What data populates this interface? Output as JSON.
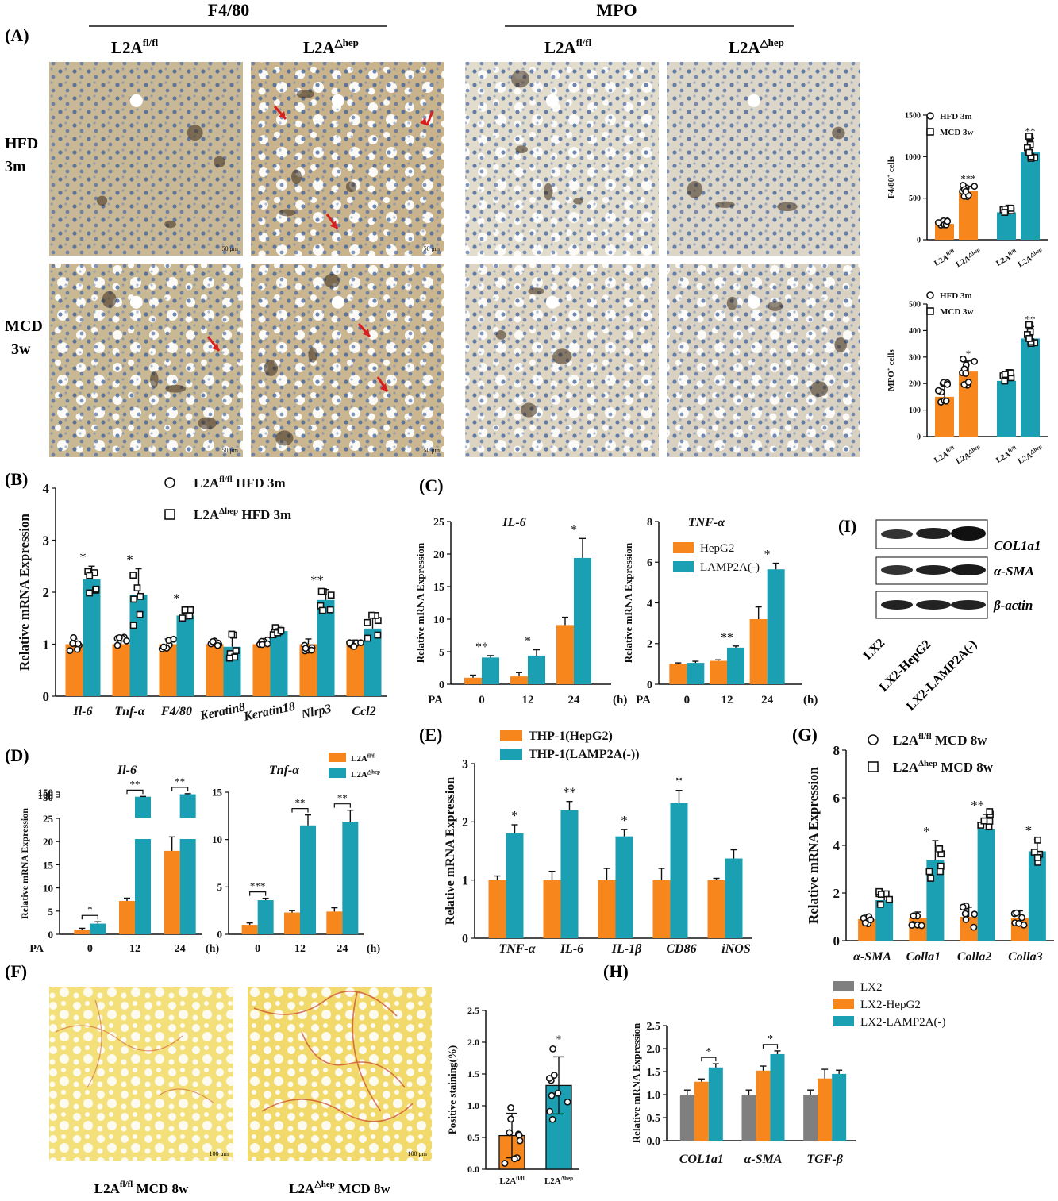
{
  "colors": {
    "orange": "#f7861c",
    "teal": "#1a9fb3",
    "gray": "#7f7f7f",
    "arrow": "#d81e1e"
  },
  "panel_letters": {
    "A": "(A)",
    "B": "(B)",
    "C": "(C)",
    "D": "(D)",
    "E": "(E)",
    "F": "(F)",
    "G": "(G)",
    "H": "(H)",
    "I": "(I)"
  },
  "panelA": {
    "f480_header": "F4/80",
    "mpo_header": "MPO",
    "col_fl_base": "L2A",
    "col_fl_sup": "fl/fl",
    "col_hep_base": "L2A",
    "col_hep_sup": "△hep",
    "row1_a": "HFD",
    "row1_b": "3m",
    "row2_a": "MCD",
    "row2_b": "3w",
    "scale_50": "50 μm",
    "images": [
      {
        "stain": "F4/80",
        "group": "L2A fl/fl",
        "diet": "HFD 3m"
      },
      {
        "stain": "F4/80",
        "group": "L2A hep",
        "diet": "HFD 3m"
      },
      {
        "stain": "MPO",
        "group": "L2A fl/fl",
        "diet": "HFD 3m"
      },
      {
        "stain": "MPO",
        "group": "L2A hep",
        "diet": "HFD 3m"
      },
      {
        "stain": "F4/80",
        "group": "L2A fl/fl",
        "diet": "MCD 3w"
      },
      {
        "stain": "F4/80",
        "group": "L2A hep",
        "diet": "MCD 3w"
      },
      {
        "stain": "MPO",
        "group": "L2A fl/fl",
        "diet": "MCD 3w"
      },
      {
        "stain": "MPO",
        "group": "L2A hep",
        "diet": "MCD 3w"
      }
    ]
  },
  "panelF": {
    "label1_base": "L2A",
    "label1_sup": "fl/fl",
    "label1_tail": " MCD 8w",
    "label2_base": "L2A",
    "label2_sup": "△hep",
    "label2_tail": " MCD 8w",
    "scale_100": "100 μm"
  },
  "panelI": {
    "bands": [
      "COL1a1",
      "α-SMA",
      "β-actin"
    ],
    "lanes": [
      "LX2",
      "LX2-HepG2",
      "LX2-LAMP2A(-)"
    ]
  },
  "chart_data": [
    {
      "id": "A1",
      "type": "bar",
      "ylabel_base": "F4/80",
      "ylabel_sup": "+",
      "ylabel_tail": " cells",
      "ylim": [
        0,
        1500
      ],
      "yticks": [
        "0",
        "500",
        "1000",
        "1500"
      ],
      "legend": [
        {
          "marker": "circle",
          "label": "HFD 3m"
        },
        {
          "marker": "square",
          "label": "MCD 3w"
        }
      ],
      "xticks": [
        {
          "base": "L2A",
          "sup": "fl/fl"
        },
        {
          "base": "L2A",
          "sup": "△hep"
        },
        {
          "base": "L2A",
          "sup": "fl/fl"
        },
        {
          "base": "L2A",
          "sup": "△hep"
        }
      ],
      "bars": [
        {
          "value": 190,
          "err": 30,
          "color": "orange",
          "marker": "circle",
          "sig": ""
        },
        {
          "value": 590,
          "err": 55,
          "color": "orange",
          "marker": "circle",
          "sig": "***"
        },
        {
          "value": 330,
          "err": 40,
          "color": "teal",
          "marker": "square",
          "sig": ""
        },
        {
          "value": 1050,
          "err": 170,
          "color": "teal",
          "marker": "square",
          "sig": "**"
        }
      ]
    },
    {
      "id": "A2",
      "type": "bar",
      "ylabel_base": "MPO",
      "ylabel_sup": "+",
      "ylabel_tail": " cells",
      "ylim": [
        0,
        500
      ],
      "yticks": [
        "0",
        "100",
        "200",
        "300",
        "400",
        "500"
      ],
      "legend": [
        {
          "marker": "circle",
          "label": "HFD 3m"
        },
        {
          "marker": "square",
          "label": "MCD 3w"
        }
      ],
      "xticks": [
        {
          "base": "L2A",
          "sup": "fl/fl"
        },
        {
          "base": "L2A",
          "sup": "△hep"
        },
        {
          "base": "L2A",
          "sup": "fl/fl"
        },
        {
          "base": "L2A",
          "sup": "△hep"
        }
      ],
      "bars": [
        {
          "value": 150,
          "err": 45,
          "color": "orange",
          "marker": "circle",
          "sig": ""
        },
        {
          "value": 245,
          "err": 40,
          "color": "orange",
          "marker": "circle",
          "sig": "*"
        },
        {
          "value": 210,
          "err": 25,
          "color": "teal",
          "marker": "square",
          "sig": ""
        },
        {
          "value": 370,
          "err": 45,
          "color": "teal",
          "marker": "square",
          "sig": "**"
        }
      ]
    },
    {
      "id": "B",
      "type": "bar",
      "ylabel": "Relative mRNA Expression",
      "ylim": [
        0,
        4
      ],
      "yticks": [
        "0",
        "1",
        "2",
        "3",
        "4"
      ],
      "categories": [
        "Il-6",
        "Tnf-α",
        "F4/80",
        "Keratin8",
        "Keratin18",
        "Nlrp3",
        "Ccl2"
      ],
      "legend": [
        {
          "marker": "circle",
          "base": "L2A",
          "sup": "fl/fl",
          "tail": " HFD 3m"
        },
        {
          "marker": "square",
          "base": "L2A",
          "sup": "Δhep",
          "tail": " HFD 3m"
        }
      ],
      "series": [
        {
          "values": [
            1.0,
            1.0,
            1.0,
            1.0,
            1.0,
            1.0,
            1.0
          ],
          "err": [
            0.1,
            0.12,
            0.1,
            0.05,
            0.08,
            0.1,
            0.08
          ],
          "color": "orange"
        },
        {
          "values": [
            2.25,
            1.95,
            1.55,
            0.95,
            1.25,
            1.85,
            1.3
          ],
          "err": [
            0.25,
            0.5,
            0.15,
            0.2,
            0.1,
            0.2,
            0.2
          ],
          "color": "teal"
        }
      ],
      "sig": [
        "*",
        "*",
        "*",
        "",
        "",
        "**",
        ""
      ]
    },
    {
      "id": "C1",
      "type": "bar",
      "title": "IL-6",
      "ylabel": "Relative mRNA Expression",
      "ylim": [
        0,
        25
      ],
      "yticks": [
        "0",
        "5",
        "10",
        "15",
        "20",
        "25"
      ],
      "xlabel_prefix": "PA",
      "xunit": "(h)",
      "categories": [
        "0",
        "12",
        "24"
      ],
      "series": [
        {
          "values": [
            1.0,
            1.2,
            9.1
          ],
          "err": [
            0.4,
            0.6,
            1.2
          ],
          "color": "orange"
        },
        {
          "values": [
            4.1,
            4.4,
            19.4
          ],
          "err": [
            0.3,
            0.9,
            3.0
          ],
          "color": "teal"
        }
      ],
      "sig": [
        "**",
        "*",
        "*"
      ]
    },
    {
      "id": "C2",
      "type": "bar",
      "title": "TNF-α",
      "ylabel": "Relative mRNA Expression",
      "ylim": [
        0,
        8
      ],
      "yticks": [
        "0",
        "2",
        "4",
        "6",
        "8"
      ],
      "xlabel_prefix": "PA",
      "xunit": "(h)",
      "categories": [
        "0",
        "12",
        "24"
      ],
      "legend": [
        {
          "color": "orange",
          "label": "HepG2"
        },
        {
          "color": "teal",
          "label": "LAMP2A(-)"
        }
      ],
      "series": [
        {
          "values": [
            1.0,
            1.15,
            3.2
          ],
          "err": [
            0.05,
            0.05,
            0.6
          ],
          "color": "orange"
        },
        {
          "values": [
            1.05,
            1.8,
            5.65
          ],
          "err": [
            0.08,
            0.08,
            0.3
          ],
          "color": "teal"
        }
      ],
      "sig": [
        "",
        "**",
        "*"
      ]
    },
    {
      "id": "D1",
      "type": "bar",
      "title": "Il-6",
      "ylabel": "Relative mRNA Expression",
      "break": true,
      "yticks_low": [
        "0",
        "5",
        "10",
        "15",
        "20",
        "25"
      ],
      "yticks_high": [
        "50",
        "100",
        "150"
      ],
      "xlabel_prefix": "PA",
      "xunit": "(h)",
      "categories": [
        "0",
        "12",
        "24"
      ],
      "series": [
        {
          "values": [
            1.0,
            7.2,
            18.0
          ],
          "err": [
            0.3,
            0.6,
            3.0
          ],
          "color": "orange"
        },
        {
          "values": [
            2.3,
            55,
            107
          ],
          "err": [
            0.4,
            6,
            12
          ],
          "color": "teal"
        }
      ],
      "sig": [
        "*",
        "**",
        "**"
      ]
    },
    {
      "id": "D2",
      "type": "bar",
      "title": "Tnf-α",
      "ylim": [
        0,
        15
      ],
      "yticks": [
        "0",
        "5",
        "10",
        "15"
      ],
      "xlabel_prefix": "",
      "xunit": "(h)",
      "categories": [
        "0",
        "12",
        "24"
      ],
      "legend": [
        {
          "color": "orange",
          "base": "L2A",
          "sup": "fl/fl"
        },
        {
          "color": "teal",
          "base": "L2A",
          "sup": "△hep"
        }
      ],
      "series": [
        {
          "values": [
            1.0,
            2.3,
            2.4
          ],
          "err": [
            0.2,
            0.2,
            0.4
          ],
          "color": "orange"
        },
        {
          "values": [
            3.6,
            11.5,
            11.9
          ],
          "err": [
            0.2,
            1.1,
            1.2
          ],
          "color": "teal"
        }
      ],
      "sig": [
        "***",
        "**",
        "**"
      ]
    },
    {
      "id": "E",
      "type": "bar",
      "ylabel": "Relative mRNA Expression",
      "ylim": [
        0,
        3
      ],
      "yticks": [
        "0",
        "1",
        "2",
        "3"
      ],
      "categories": [
        "TNF-α",
        "IL-6",
        "IL-1β",
        "CD86",
        "iNOS"
      ],
      "legend": [
        {
          "color": "orange",
          "label": "THP-1(HepG2)"
        },
        {
          "color": "teal",
          "label": "THP-1(LAMP2A(-))"
        }
      ],
      "series": [
        {
          "values": [
            1.0,
            1.0,
            1.0,
            1.0,
            1.0
          ],
          "err": [
            0.07,
            0.15,
            0.2,
            0.2,
            0.03
          ],
          "color": "orange"
        },
        {
          "values": [
            1.8,
            2.2,
            1.75,
            2.32,
            1.37
          ],
          "err": [
            0.15,
            0.15,
            0.12,
            0.22,
            0.15
          ],
          "color": "teal"
        }
      ],
      "sig": [
        "*",
        "**",
        "*",
        "*",
        ""
      ]
    },
    {
      "id": "F",
      "type": "bar",
      "ylabel": "Positive staining(%)",
      "ylim": [
        0,
        2.5
      ],
      "yticks": [
        "0.0",
        "0.5",
        "1.0",
        "1.5",
        "2.0",
        "2.5"
      ],
      "xticks": [
        {
          "base": "L2A",
          "sup": "fl/fl"
        },
        {
          "base": "L2A",
          "sup": "Δhep"
        }
      ],
      "bars": [
        {
          "value": 0.53,
          "err": 0.35,
          "color": "orange",
          "marker": "circle",
          "sig": ""
        },
        {
          "value": 1.32,
          "err": 0.45,
          "color": "teal",
          "marker": "circle",
          "sig": "*"
        }
      ]
    },
    {
      "id": "G",
      "type": "bar",
      "ylabel": "Relative mRNA Expression",
      "ylim": [
        0,
        8
      ],
      "yticks": [
        "0",
        "2",
        "4",
        "6",
        "8"
      ],
      "categories": [
        "α-SMA",
        "Colla1",
        "Colla2",
        "Colla3"
      ],
      "legend": [
        {
          "marker": "circle",
          "base": "L2A",
          "sup": "fl/fl",
          "tail": " MCD 8w"
        },
        {
          "marker": "square",
          "base": "L2A",
          "sup": "Δhep",
          "tail": " MCD 8w"
        }
      ],
      "series": [
        {
          "values": [
            0.9,
            0.95,
            1.0,
            0.95
          ],
          "err": [
            0.2,
            0.25,
            0.4,
            0.3
          ],
          "color": "orange"
        },
        {
          "values": [
            1.7,
            3.4,
            4.7,
            3.75
          ],
          "err": [
            0.3,
            0.8,
            0.6,
            0.5
          ],
          "color": "teal"
        }
      ],
      "sig": [
        "",
        "*",
        "**",
        "*"
      ]
    },
    {
      "id": "H",
      "type": "bar",
      "ylabel": "Relative mRNA Expression",
      "ylim": [
        0,
        2.5
      ],
      "yticks": [
        "0.0",
        "0.5",
        "1.0",
        "1.5",
        "2.0",
        "2.5"
      ],
      "categories": [
        "COL1a1",
        "α-SMA",
        "TGF-β"
      ],
      "legend": [
        {
          "color": "gray",
          "label": "LX2"
        },
        {
          "color": "orange",
          "label": "LX2-HepG2"
        },
        {
          "color": "teal",
          "label": "LX2-LAMP2A(-)"
        }
      ],
      "series": [
        {
          "values": [
            1.0,
            1.0,
            1.0
          ],
          "err": [
            0.1,
            0.1,
            0.1
          ],
          "color": "gray"
        },
        {
          "values": [
            1.28,
            1.52,
            1.35
          ],
          "err": [
            0.06,
            0.1,
            0.2
          ],
          "color": "orange"
        },
        {
          "values": [
            1.59,
            1.88,
            1.45
          ],
          "err": [
            0.08,
            0.07,
            0.08
          ],
          "color": "teal"
        }
      ],
      "sig": [
        "*",
        "*",
        ""
      ]
    }
  ]
}
